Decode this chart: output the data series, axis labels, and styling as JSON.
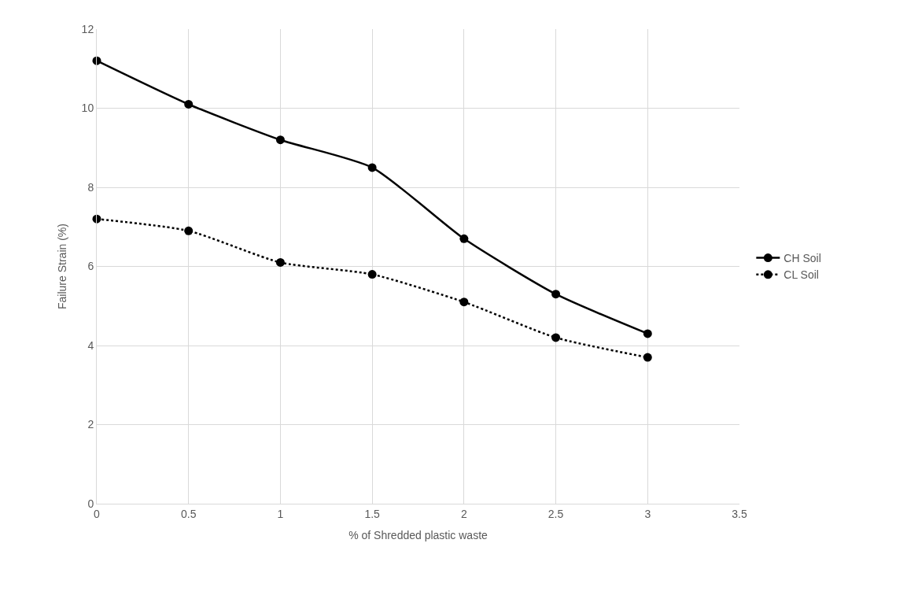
{
  "chart_data": {
    "type": "line",
    "xlabel": "% of Shredded plastic waste",
    "ylabel": "Failure Strain (%)",
    "x": [
      0,
      0.5,
      1,
      1.5,
      2,
      2.5,
      3
    ],
    "series": [
      {
        "name": "CH Soil",
        "color": "#000000",
        "line_style": "solid",
        "values": [
          11.2,
          10.1,
          9.2,
          8.5,
          6.7,
          5.3,
          4.3
        ]
      },
      {
        "name": "CL Soil",
        "color": "#000000",
        "line_style": "dotted",
        "values": [
          7.2,
          6.9,
          6.1,
          5.8,
          5.1,
          4.2,
          3.7
        ]
      }
    ],
    "xlim": [
      0,
      3.5
    ],
    "xticks": [
      0,
      0.5,
      1,
      1.5,
      2,
      2.5,
      3,
      3.5
    ],
    "ylim": [
      0,
      12
    ],
    "yticks": [
      0,
      2,
      4,
      6,
      8,
      10,
      12
    ],
    "grid": true,
    "legend": "right",
    "marker": "circle"
  }
}
